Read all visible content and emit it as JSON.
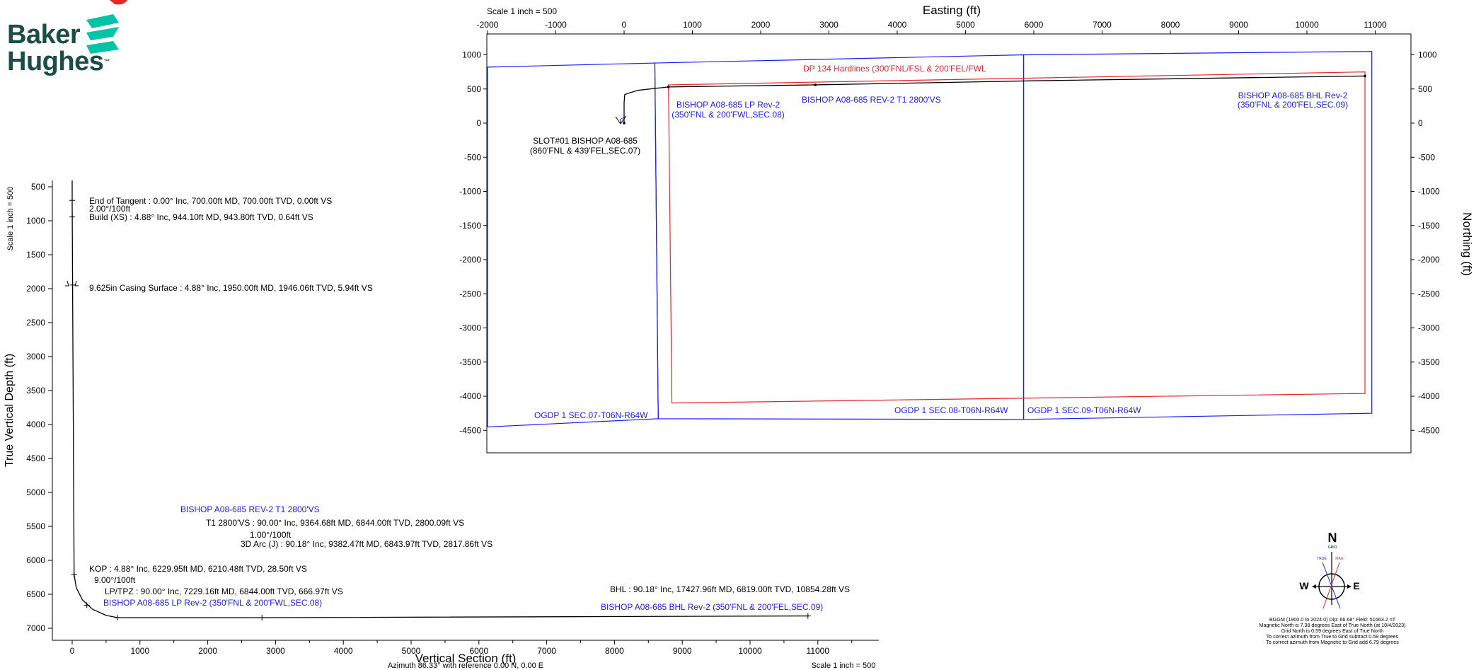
{
  "logo": {
    "line1": "Baker",
    "line2": "Hughes",
    "tm": "™",
    "mark_color": "#05c3a6",
    "text_color": "#1a4d45"
  },
  "colors": {
    "plan_blue": "#1a1aff",
    "hardline_red": "#e8242c",
    "well_black": "#000000"
  },
  "plan_view": {
    "axis_title_x": "Easting (ft)",
    "axis_title_y": "Northing (ft)",
    "scale_text": "Scale 1 inch = 500",
    "annotations": {
      "hardlines": "DP 134 Hardlines (300'FNL/FSL & 200'FEL/FWL",
      "t1": "BISHOP A08-685 REV-2 T1 2800'VS",
      "lp_1": "BISHOP A08-685 LP Rev-2",
      "lp_2": "(350'FNL & 200'FWL,SEC.08)",
      "bhl_1": "BISHOP A08-685 BHL Rev-2",
      "bhl_2": "(350'FNL & 200'FEL,SEC.09)",
      "slot_1": "SLOT#01 BISHOP A08-685",
      "slot_2": "(860'FNL & 439'FEL,SEC.07)",
      "sec07": "OGDP 1 SEC.07-T06N-R64W",
      "sec08": "OGDP 1 SEC.08-T06N-R64W",
      "sec09": "OGDP 1 SEC.09-T06N-R64W"
    }
  },
  "section_view": {
    "axis_title_x": "Vertical Section (ft)",
    "axis_title_y": "True Vertical Depth (ft)",
    "scale_left": "Scale 1 inch = 500",
    "scale_bottom": "Scale 1 inch = 500",
    "azimuth_text": "Azimuth 86.33° with reference 0.00 N, 0.00 E",
    "annotations": {
      "eot": "End of Tangent : 0.00° Inc, 700.00ft MD, 700.00ft TVD, 0.00ft VS",
      "dls1": "2.00°/100ft",
      "build": "Build (XS) : 4.88° Inc, 944.10ft MD, 943.80ft TVD, 0.64ft VS",
      "casing": "9.625in Casing Surface : 4.88° Inc, 1950.00ft MD, 1946.06ft TVD, 5.94ft VS",
      "t1_title": "BISHOP A08-685 REV-2 T1 2800'VS",
      "t1": "T1 2800'VS : 90.00° Inc, 9364.68ft MD, 6844.00ft TVD, 2800.09ft VS",
      "dls2": "1.00°/100ft",
      "arc": "3D Arc (J) : 90.18° Inc, 9382.47ft MD, 6843.97ft TVD, 2817.86ft VS",
      "kop": "KOP : 4.88° Inc, 6229.95ft MD, 6210.48ft TVD, 28.50ft VS",
      "dls3": "9.00°/100ft",
      "lp": "LP/TPZ : 90.00° Inc, 7229.16ft MD, 6844.00ft TVD, 666.97ft VS",
      "lp_title": "BISHOP A08-685 LP Rev-2 (350'FNL & 200'FWL,SEC.08)",
      "bhl": "BHL : 90.18° Inc, 17427.96ft MD, 6819.00ft TVD, 10854.28ft VS",
      "bhl_title": "BISHOP A08-685 BHL Rev-2 (350'FNL & 200'FEL,SEC.09)"
    }
  },
  "north_arrow": {
    "n": "N",
    "grid": "GRID",
    "true_lbl": "TRUE",
    "mag_lbl": "MAG",
    "w": "W",
    "e": "E",
    "notes": [
      "BGGM (1900.0 to 2024.0) Dip: 66.68°  Field: 51663.2 nT",
      "Magnetic North is 7.38 degrees East of True North (at 10/4/2023)",
      "Grid North is 0.59 degrees East of True North",
      "To correct azimuth from True to Grid subtract 0.59 degrees",
      "To correct azimuth from Magnetic to Grid add 6.79 degrees"
    ]
  },
  "chart_data": [
    {
      "type": "line",
      "name": "plan view",
      "xlabel": "Easting (ft)",
      "ylabel": "Northing (ft)",
      "xlim": [
        -2000,
        11500
      ],
      "ylim": [
        -4800,
        1200
      ],
      "xticks": [
        -2000,
        -1000,
        0,
        1000,
        2000,
        3000,
        4000,
        5000,
        6000,
        7000,
        8000,
        9000,
        10000,
        11000
      ],
      "yticks": [
        1000,
        500,
        0,
        -500,
        -1000,
        -1500,
        -2000,
        -2500,
        -3000,
        -3500,
        -4000,
        -4500
      ],
      "section_polygons": [
        [
          [
            -2000,
            820
          ],
          [
            450,
            880
          ],
          [
            500,
            -4330
          ],
          [
            -2000,
            -4450
          ]
        ],
        [
          [
            450,
            880
          ],
          [
            5850,
            1000
          ],
          [
            5850,
            -4340
          ],
          [
            500,
            -4330
          ]
        ],
        [
          [
            5850,
            1000
          ],
          [
            10950,
            1050
          ],
          [
            10950,
            -4250
          ],
          [
            5850,
            -4340
          ]
        ]
      ],
      "hardline_polygon": [
        [
          650,
          560
        ],
        [
          10850,
          750
        ],
        [
          10850,
          -3960
        ],
        [
          700,
          -4100
        ]
      ],
      "wellpath": [
        [
          0,
          0
        ],
        [
          0,
          300
        ],
        [
          10,
          420
        ],
        [
          200,
          480
        ],
        [
          650,
          530
        ],
        [
          2800,
          560
        ],
        [
          6000,
          620
        ],
        [
          10850,
          690
        ]
      ],
      "markers": [
        [
          0,
          0
        ],
        [
          650,
          530
        ],
        [
          2800,
          560
        ],
        [
          10850,
          690
        ]
      ]
    },
    {
      "type": "line",
      "name": "vertical section",
      "xlabel": "Vertical Section (ft)",
      "ylabel": "True Vertical Depth (ft)",
      "xlim": [
        -300,
        11500
      ],
      "ylim": [
        7100,
        400
      ],
      "xticks": [
        0,
        1000,
        2000,
        3000,
        4000,
        5000,
        6000,
        7000,
        8000,
        9000,
        10000,
        11000
      ],
      "yticks": [
        500,
        1000,
        1500,
        2000,
        2500,
        3000,
        3500,
        4000,
        4500,
        5000,
        5500,
        6000,
        6500,
        7000
      ],
      "wellpath": [
        [
          0,
          0
        ],
        [
          0,
          700
        ],
        [
          1,
          944
        ],
        [
          6,
          1946
        ],
        [
          28.5,
          6210
        ],
        [
          60,
          6400
        ],
        [
          150,
          6580
        ],
        [
          300,
          6720
        ],
        [
          500,
          6810
        ],
        [
          667,
          6844
        ],
        [
          2800,
          6844
        ],
        [
          2818,
          6844
        ],
        [
          10854,
          6819
        ]
      ],
      "markers": [
        [
          0,
          700
        ],
        [
          1,
          944
        ],
        [
          6,
          1946
        ],
        [
          28.5,
          6210
        ],
        [
          216,
          6660
        ],
        [
          667,
          6844
        ],
        [
          2800,
          6844
        ],
        [
          10854,
          6819
        ]
      ]
    }
  ]
}
